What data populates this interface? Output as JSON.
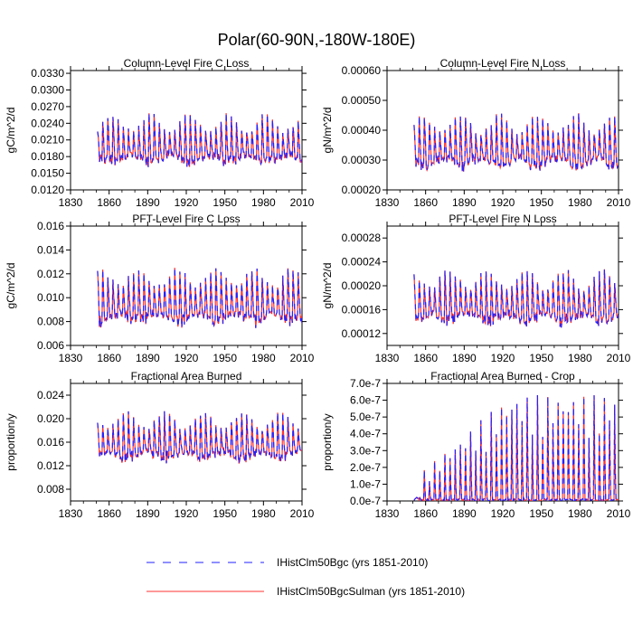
{
  "figure": {
    "title": "Polar(60-90N,-180W-180E)"
  },
  "legend": {
    "entries": [
      {
        "label": "IHistClm50Bgc (yrs 1851-2010)",
        "color": "#2222ff",
        "style": "dashed"
      },
      {
        "label": "IHistClm50BgcSulman (yrs 1851-2010)",
        "color": "#ff3333",
        "style": "solid"
      }
    ]
  },
  "chart_data": [
    {
      "type": "line",
      "title": "Column-Level Fire C Loss",
      "ylabel": "gC/m^2/d",
      "xlim": [
        1830,
        2010
      ],
      "ylim": [
        0.012,
        0.0335
      ],
      "xticks": [
        1830,
        1860,
        1890,
        1920,
        1950,
        1980,
        2010
      ],
      "yticks": [
        "0.0120",
        "0.0150",
        "0.0180",
        "0.0210",
        "0.0240",
        "0.0270",
        "0.0300",
        "0.0330"
      ],
      "ytick_values": [
        0.012,
        0.015,
        0.018,
        0.021,
        0.024,
        0.027,
        0.03,
        0.033
      ],
      "x_start": 1851,
      "x_end": 2010,
      "base": 0.0195,
      "amp": 0.006,
      "min_val": 0.0125,
      "max_val": 0.0315,
      "series": [
        {
          "name": "IHistClm50Bgc"
        },
        {
          "name": "IHistClm50BgcSulman"
        }
      ]
    },
    {
      "type": "line",
      "title": "Column-Level Fire N Loss",
      "ylabel": "gN/m^2/d",
      "xlim": [
        1830,
        2010
      ],
      "ylim": [
        0.0002,
        0.0006
      ],
      "xticks": [
        1830,
        1860,
        1890,
        1920,
        1950,
        1980,
        2010
      ],
      "yticks": [
        "0.00020",
        "0.00030",
        "0.00040",
        "0.00050",
        "0.00060"
      ],
      "ytick_values": [
        0.0002,
        0.0003,
        0.0004,
        0.0005,
        0.0006
      ],
      "x_start": 1851,
      "x_end": 2010,
      "base": 0.00033,
      "amp": 0.00012,
      "min_val": 0.00021,
      "max_val": 0.00056,
      "series": [
        {
          "name": "IHistClm50Bgc"
        },
        {
          "name": "IHistClm50BgcSulman"
        }
      ]
    },
    {
      "type": "line",
      "title": "PFT-Level Fire C Loss",
      "ylabel": "gC/m^2/d",
      "xlim": [
        1830,
        2010
      ],
      "ylim": [
        0.006,
        0.016
      ],
      "xticks": [
        1830,
        1860,
        1890,
        1920,
        1950,
        1980,
        2010
      ],
      "yticks": [
        "0.006",
        "0.008",
        "0.010",
        "0.012",
        "0.014",
        "0.016"
      ],
      "ytick_values": [
        0.006,
        0.008,
        0.01,
        0.012,
        0.014,
        0.016
      ],
      "x_start": 1851,
      "x_end": 2010,
      "base": 0.0093,
      "amp": 0.0032,
      "min_val": 0.0063,
      "max_val": 0.0156,
      "series": [
        {
          "name": "IHistClm50Bgc"
        },
        {
          "name": "IHistClm50BgcSulman"
        }
      ]
    },
    {
      "type": "line",
      "title": "PFT-Level Fire N Loss",
      "ylabel": "gN/m^2/d",
      "xlim": [
        1830,
        2010
      ],
      "ylim": [
        0.0001,
        0.0003
      ],
      "xticks": [
        1830,
        1860,
        1890,
        1920,
        1950,
        1980,
        2010
      ],
      "yticks": [
        "0.00012",
        "0.00016",
        "0.00020",
        "0.00024",
        "0.00028"
      ],
      "ytick_values": [
        0.00012,
        0.00016,
        0.0002,
        0.00024,
        0.00028
      ],
      "x_start": 1851,
      "x_end": 2010,
      "base": 0.000165,
      "amp": 6e-05,
      "min_val": 0.000105,
      "max_val": 0.000295,
      "series": [
        {
          "name": "IHistClm50Bgc"
        },
        {
          "name": "IHistClm50BgcSulman"
        }
      ]
    },
    {
      "type": "line",
      "title": "Fractional Area Burned",
      "ylabel": "proportion/y",
      "xlim": [
        1830,
        2010
      ],
      "ylim": [
        0.006,
        0.026
      ],
      "xticks": [
        1830,
        1860,
        1890,
        1920,
        1950,
        1980,
        2010
      ],
      "yticks": [
        "0.008",
        "0.012",
        "0.016",
        "0.020",
        "0.024"
      ],
      "ytick_values": [
        0.008,
        0.012,
        0.016,
        0.02,
        0.024
      ],
      "x_start": 1851,
      "x_end": 2010,
      "base": 0.0155,
      "amp": 0.0055,
      "min_val": 0.009,
      "max_val": 0.0245,
      "series": [
        {
          "name": "IHistClm50Bgc"
        },
        {
          "name": "IHistClm50BgcSulman"
        }
      ]
    },
    {
      "type": "line",
      "title": "Fractional Area Burned - Crop",
      "ylabel": "proportion/y",
      "xlim": [
        1830,
        2010
      ],
      "ylim": [
        0,
        7e-07
      ],
      "xticks": [
        1830,
        1860,
        1890,
        1920,
        1950,
        1980,
        2010
      ],
      "yticks": [
        "0.0e-7",
        "1.0e-7",
        "2.0e-7",
        "3.0e-7",
        "4.0e-7",
        "5.0e-7",
        "6.0e-7",
        "7.0e-7"
      ],
      "ytick_values": [
        0,
        1e-07,
        2e-07,
        3e-07,
        4e-07,
        5e-07,
        6e-07,
        7e-07
      ],
      "x_start": 1851,
      "x_end": 2010,
      "base": 0,
      "amp": 6.3e-07,
      "min_val": 0,
      "max_val": 6.5e-07,
      "crop": true,
      "series": [
        {
          "name": "IHistClm50Bgc"
        },
        {
          "name": "IHistClm50BgcSulman"
        }
      ]
    }
  ]
}
